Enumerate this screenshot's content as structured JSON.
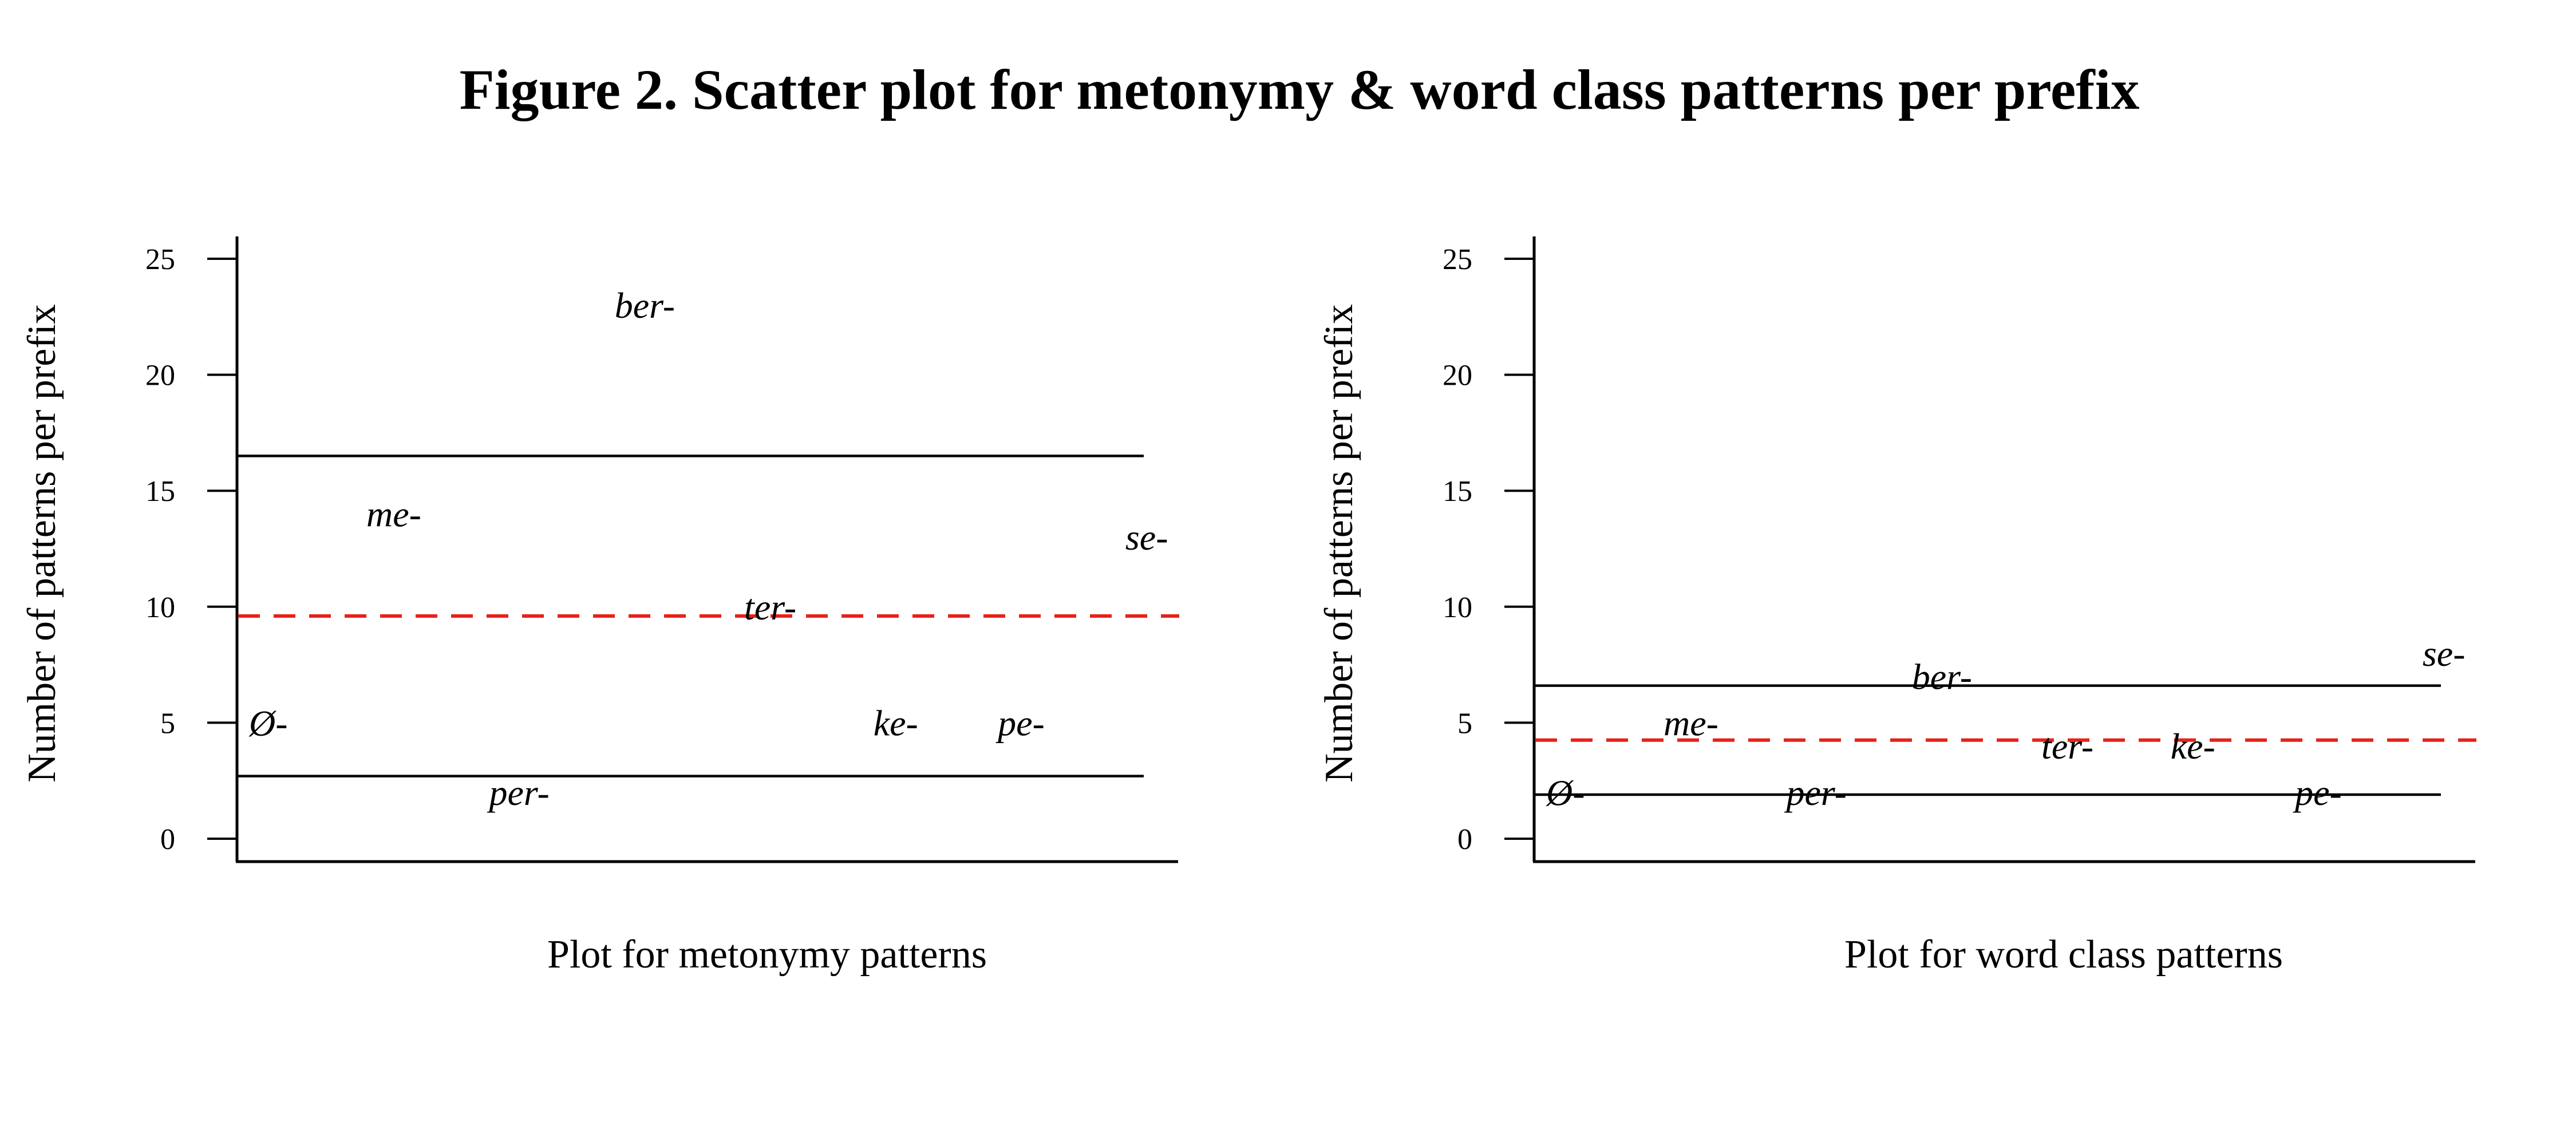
{
  "figure_title": "Figure 2. Scatter plot for metonymy & word class patterns per prefix",
  "colors": {
    "mean_line": "#e8211a",
    "bound_line": "#000000",
    "axis": "#000000"
  },
  "chart_data": [
    {
      "type": "scatter",
      "title": "",
      "xlabel": "Plot for metonymy patterns",
      "ylabel": "Number of patterns per prefix",
      "ylim": [
        0,
        25
      ],
      "yticks": [
        0,
        5,
        10,
        15,
        20,
        25
      ],
      "xlim": [
        0.75,
        8.25
      ],
      "grid": false,
      "points": [
        {
          "x": 1,
          "y": 5,
          "label": "Ø-"
        },
        {
          "x": 2,
          "y": 14,
          "label": "me-"
        },
        {
          "x": 3,
          "y": 2,
          "label": "per-"
        },
        {
          "x": 4,
          "y": 23,
          "label": "ber-"
        },
        {
          "x": 5,
          "y": 10,
          "label": "ter-"
        },
        {
          "x": 6,
          "y": 5,
          "label": "ke-"
        },
        {
          "x": 7,
          "y": 5,
          "label": "pe-"
        },
        {
          "x": 8,
          "y": 13,
          "label": "se-"
        }
      ],
      "mean_line": 9.6,
      "bound_lines": [
        16.5,
        2.7
      ]
    },
    {
      "type": "scatter",
      "title": "",
      "xlabel": "Plot for word class patterns",
      "ylabel": "Number of patterns per prefix",
      "ylim": [
        0,
        25
      ],
      "yticks": [
        0,
        5,
        10,
        15,
        20,
        25
      ],
      "xlim": [
        0.75,
        8.25
      ],
      "grid": false,
      "points": [
        {
          "x": 1,
          "y": 2,
          "label": "Ø-"
        },
        {
          "x": 2,
          "y": 5,
          "label": "me-"
        },
        {
          "x": 3,
          "y": 2,
          "label": "per-"
        },
        {
          "x": 4,
          "y": 7,
          "label": "ber-"
        },
        {
          "x": 5,
          "y": 4,
          "label": "ter-"
        },
        {
          "x": 6,
          "y": 4,
          "label": "ke-"
        },
        {
          "x": 7,
          "y": 2,
          "label": "pe-"
        },
        {
          "x": 8,
          "y": 8,
          "label": "se-"
        }
      ],
      "mean_line": 4.25,
      "bound_lines": [
        6.6,
        1.9
      ]
    }
  ]
}
